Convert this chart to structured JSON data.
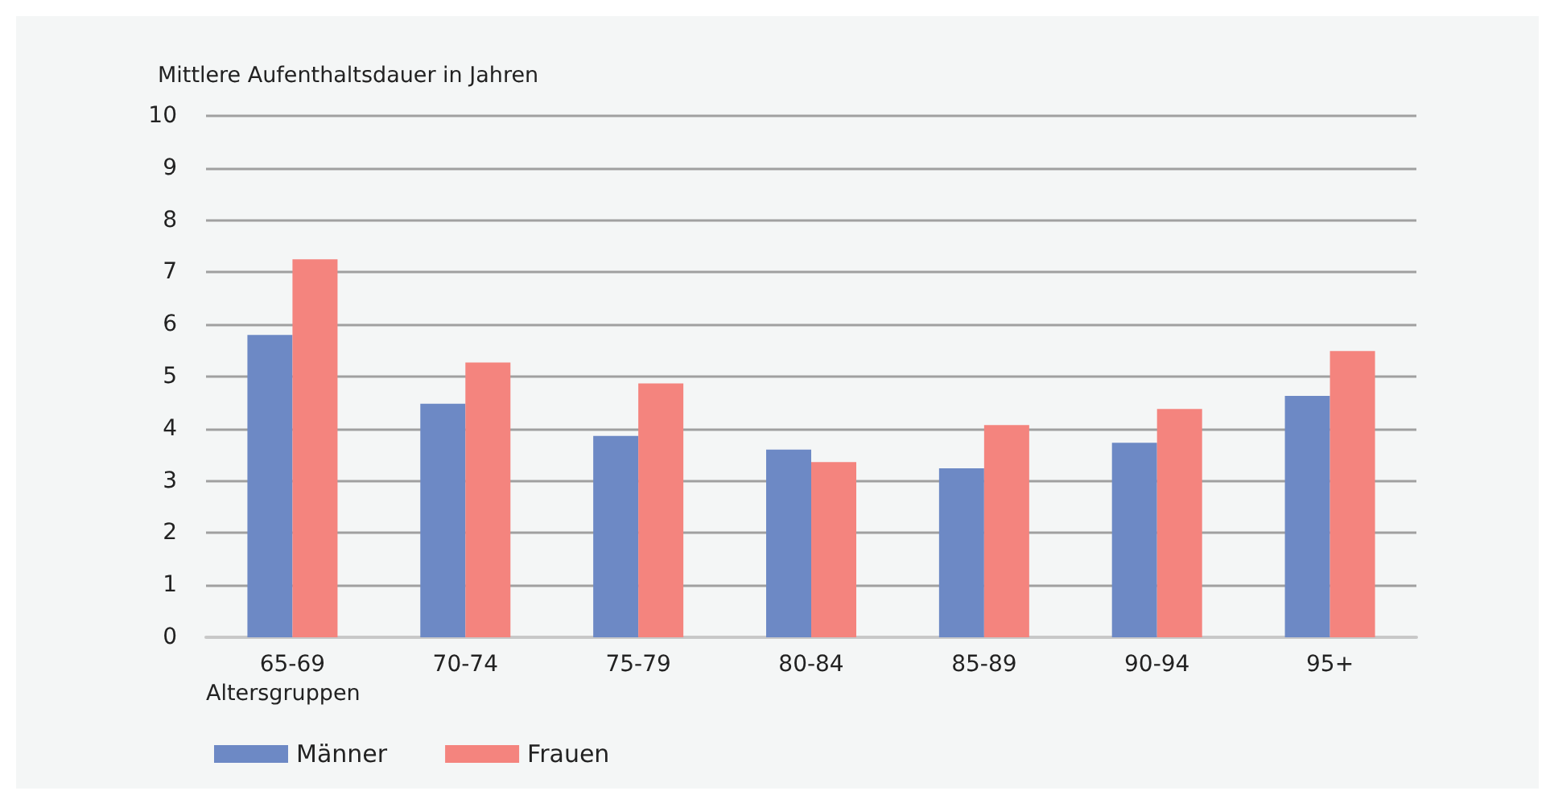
{
  "chart_data": {
    "type": "bar",
    "ylabel": "Mittlere Aufenthaltsdauer in Jahren",
    "xlabel": "Altersgruppen",
    "categories": [
      "65-69",
      "70-74",
      "75-79",
      "80-84",
      "85-89",
      "90-94",
      "95+"
    ],
    "series": [
      {
        "name": "Männer",
        "color": "#6d89c5",
        "values": [
          5.8,
          4.48,
          3.86,
          3.6,
          3.24,
          3.73,
          4.63
        ]
      },
      {
        "name": "Frauen",
        "color": "#f4847e",
        "values": [
          7.25,
          5.27,
          4.87,
          3.36,
          4.07,
          4.38,
          5.49
        ]
      }
    ],
    "ylim": [
      0,
      10
    ],
    "yticks": [
      0,
      1,
      2,
      3,
      4,
      5,
      6,
      7,
      8,
      9,
      10
    ],
    "grid": "y",
    "legend": "bottom left"
  }
}
